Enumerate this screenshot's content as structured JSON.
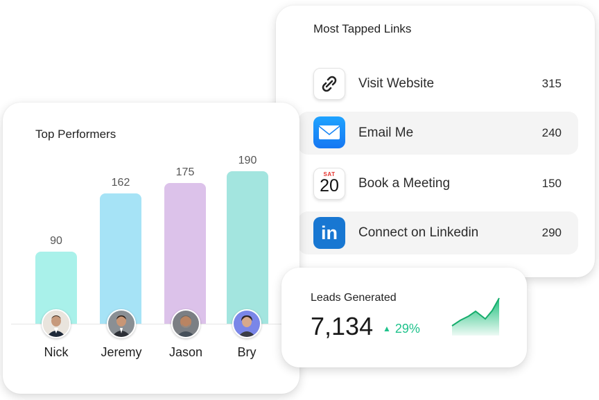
{
  "links": {
    "title": "Most Tapped Links",
    "items": [
      {
        "label": "Visit Website",
        "count": "315",
        "icon": "link-icon"
      },
      {
        "label": "Email Me",
        "count": "240",
        "icon": "mail-icon"
      },
      {
        "label": "Book a Meeting",
        "count": "150",
        "icon": "calendar-icon",
        "calendar_day": "SAT",
        "calendar_date": "20"
      },
      {
        "label": "Connect on Linkedin",
        "count": "290",
        "icon": "linkedin-icon",
        "icon_text": "in"
      }
    ]
  },
  "performers": {
    "title": "Top Performers",
    "people": [
      {
        "name": "Nick",
        "value": "90",
        "color": "#a9f1ea"
      },
      {
        "name": "Jeremy",
        "value": "162",
        "color": "#a6e3f6"
      },
      {
        "name": "Jason",
        "value": "175",
        "color": "#dcc2ea"
      },
      {
        "name": "Bry",
        "value": "190",
        "color": "#a3e5df"
      }
    ]
  },
  "leads": {
    "title": "Leads Generated",
    "value": "7,134",
    "change": "29%",
    "change_color": "#1ec28b",
    "trend": "up"
  }
}
